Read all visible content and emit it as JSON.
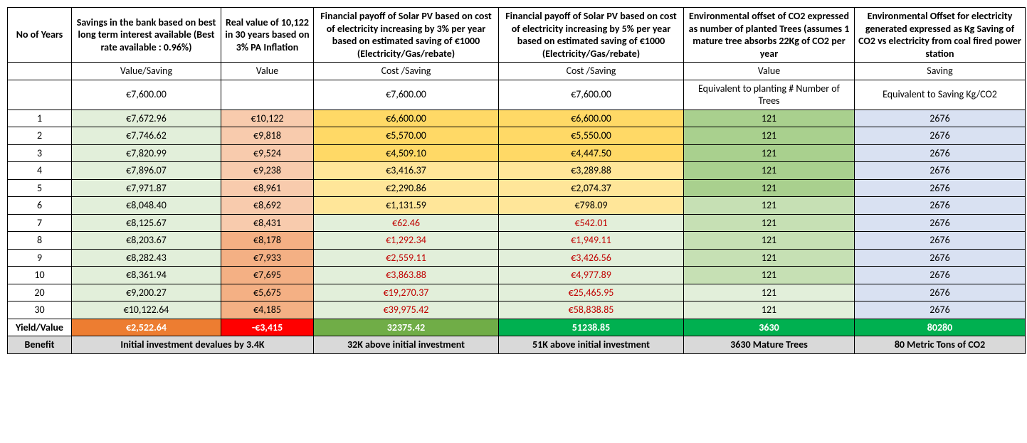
{
  "headers": {
    "year": "No of Years",
    "savings": "Savings in the bank based on best long term interest available (Best  rate available : 0.96%)",
    "real": "Real value of 10,122 in 30 years based on 3% PA Inflation",
    "pv3": "Financial payoff of Solar PV based on cost of electricity increasing by 3% per year based on estimated saving of €1000 (Electricity/Gas/rebate)",
    "pv5": "Financial payoff of Solar PV based on cost of electricity increasing by 5% per year based on estimated saving of €1000 (Electricity/Gas/rebate)",
    "trees": "Environmental offset of CO2 expressed as number of planted Trees (assumes 1 mature tree absorbs 22Kg of CO2 per year",
    "co2": "Environmental Offset for electricity generated expressed as Kg Saving of CO2 vs electricity from coal fired power station"
  },
  "sub": {
    "savings": "Value/Saving",
    "real": "Value",
    "pv3": "Cost /Saving",
    "pv5": "Cost /Saving",
    "trees": "Value",
    "co2": "Saving"
  },
  "init": {
    "savings": "€7,600.00",
    "pv3": "€7,600.00",
    "pv5": "€7,600.00",
    "trees": "Equivalent to planting # Number of Trees",
    "co2": "Equivalent to Saving Kg/CO2"
  },
  "rows": [
    {
      "y": "1",
      "s": "€7,672.96",
      "r": "€10,122",
      "p3": "€6,600.00",
      "p5": "€6,600.00",
      "t": "121",
      "c": "2676",
      "cls": {
        "s": "bg-green-lt",
        "r": "bg-red-lt",
        "p3": "bg-yellow-dk",
        "p5": "bg-yellow-dk",
        "t": "bg-green-dk",
        "c": "bg-blue-lt"
      }
    },
    {
      "y": "2",
      "s": "€7,746.62",
      "r": "€9,818",
      "p3": "€5,570.00",
      "p5": "€5,550.00",
      "t": "121",
      "c": "2676",
      "cls": {
        "s": "bg-green-lt",
        "r": "bg-red-lt",
        "p3": "bg-yellow-dk",
        "p5": "bg-yellow-dk",
        "t": "bg-green-dk",
        "c": "bg-blue-lt"
      }
    },
    {
      "y": "3",
      "s": "€7,820.99",
      "r": "€9,524",
      "p3": "€4,509.10",
      "p5": "€4,447.50",
      "t": "121",
      "c": "2676",
      "cls": {
        "s": "bg-green-lt",
        "r": "bg-red-lt",
        "p3": "bg-yellow-dk",
        "p5": "bg-yellow-dk",
        "t": "bg-green-dk",
        "c": "bg-blue-lt"
      }
    },
    {
      "y": "4",
      "s": "€7,896.07",
      "r": "€9,238",
      "p3": "€3,416.37",
      "p5": "€3,289.88",
      "t": "121",
      "c": "2676",
      "cls": {
        "s": "bg-green-lt",
        "r": "bg-red-lt",
        "p3": "bg-yellow",
        "p5": "bg-yellow",
        "t": "bg-green-dk",
        "c": "bg-blue-lt"
      }
    },
    {
      "y": "5",
      "s": "€7,971.87",
      "r": "€8,961",
      "p3": "€2,290.86",
      "p5": "€2,074.37",
      "t": "121",
      "c": "2676",
      "cls": {
        "s": "bg-green-lt",
        "r": "bg-red-lt",
        "p3": "bg-yellow",
        "p5": "bg-yellow",
        "t": "bg-green-dk",
        "c": "bg-blue-lt"
      }
    },
    {
      "y": "6",
      "s": "€8,048.40",
      "r": "€8,692",
      "p3": "€1,131.59",
      "p5": "€798.09",
      "t": "121",
      "c": "2676",
      "cls": {
        "s": "bg-green-lt",
        "r": "bg-red-lt",
        "p3": "bg-yellow",
        "p5": "bg-yellow",
        "t": "bg-green-md",
        "c": "bg-blue-lt"
      }
    },
    {
      "y": "7",
      "s": "€8,125.67",
      "r": "€8,431",
      "p3": "€62.46",
      "p5": "€542.01",
      "t": "121",
      "c": "2676",
      "cls": {
        "s": "bg-green-lt",
        "r": "bg-red-lt",
        "p3": "bg-green-lt fg-red",
        "p5": "bg-green-lt fg-red",
        "t": "bg-green-md",
        "c": "bg-blue-lt"
      }
    },
    {
      "y": "8",
      "s": "€8,203.67",
      "r": "€8,178",
      "p3": "€1,292.34",
      "p5": "€1,949.11",
      "t": "121",
      "c": "2676",
      "cls": {
        "s": "bg-green-lt",
        "r": "bg-red-md",
        "p3": "bg-green-lt fg-red",
        "p5": "bg-green-lt fg-red",
        "t": "bg-green-md",
        "c": "bg-blue-lt"
      }
    },
    {
      "y": "9",
      "s": "€8,282.43",
      "r": "€7,933",
      "p3": "€2,559.11",
      "p5": "€3,426.56",
      "t": "121",
      "c": "2676",
      "cls": {
        "s": "bg-green-lt",
        "r": "bg-red-md",
        "p3": "bg-green-lt fg-red",
        "p5": "bg-green-lt fg-red",
        "t": "bg-green-md",
        "c": "bg-blue-lt"
      }
    },
    {
      "y": "10",
      "s": "€8,361.94",
      "r": "€7,695",
      "p3": "€3,863.88",
      "p5": "€4,977.89",
      "t": "121",
      "c": "2676",
      "cls": {
        "s": "bg-green-lt",
        "r": "bg-red-md",
        "p3": "bg-green-lt fg-red",
        "p5": "bg-green-lt fg-red",
        "t": "bg-green-md",
        "c": "bg-blue-lt"
      }
    },
    {
      "y": "20",
      "s": "€9,200.27",
      "r": "€5,675",
      "p3": "€19,270.37",
      "p5": "€25,465.95",
      "t": "121",
      "c": "2676",
      "cls": {
        "s": "bg-green-lt",
        "r": "bg-red-md",
        "p3": "bg-green-lt fg-red",
        "p5": "bg-green-lt fg-red",
        "t": "bg-green-lt",
        "c": "bg-blue-lt"
      }
    },
    {
      "y": "30",
      "s": "€10,122.64",
      "r": "€4,185",
      "p3": "€39,975.42",
      "p5": "€58,838.85",
      "t": "121",
      "c": "2676",
      "cls": {
        "s": "bg-green-lt",
        "r": "bg-red-md",
        "p3": "bg-green-lt fg-red",
        "p5": "bg-green-lt fg-red",
        "t": "bg-green-lt",
        "c": "bg-blue-lt"
      }
    }
  ],
  "yield": {
    "label": "Yield/Value",
    "s": "€2,522.64",
    "r": "-€3,415",
    "p3": "32375.42",
    "p5": "51238.85",
    "t": "3630",
    "c": "80280"
  },
  "benefit": {
    "label": "Benefit",
    "sr": "Initial investment devalues by 3.4K",
    "p3": "32K above initial investment",
    "p5": "51K above initial investment",
    "t": "3630 Mature Trees",
    "c": "80 Metric Tons of CO2"
  }
}
